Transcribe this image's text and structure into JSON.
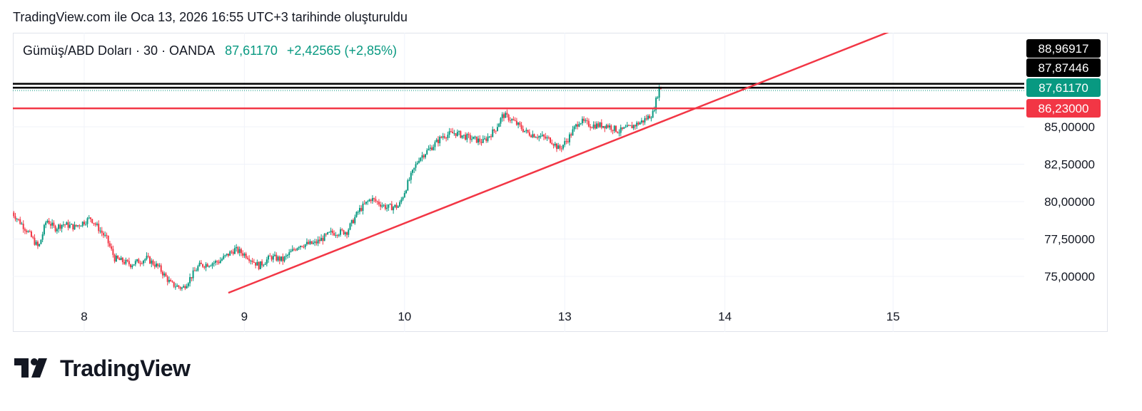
{
  "header": {
    "created_text": "TradingView.com ile Oca 13, 2026 16:55 UTC+3 tarihinde oluşturuldu"
  },
  "legend": {
    "symbol": "Gümüş/ABD Doları · 30 · OANDA",
    "price": "87,61170",
    "change": "+2,42565 (+2,85%)"
  },
  "brand": {
    "name": "TradingView",
    "logo_icon": "tradingview-logo-icon"
  },
  "colors": {
    "up": "#089981",
    "down": "#f23645",
    "level": "#000000",
    "trend": "#f23645"
  },
  "chart_data": {
    "type": "candlestick",
    "symbol": "Gümüş/ABD Doları",
    "interval": "30",
    "ylim": [
      73.3,
      90.5
    ],
    "y_ticks": [
      "75,00000",
      "77,50000",
      "80,00000",
      "82,50000",
      "85,00000"
    ],
    "y_tick_values": [
      75,
      77.5,
      80,
      82.5,
      85
    ],
    "x_ticks": [
      "8",
      "9",
      "10",
      "13",
      "14",
      "15"
    ],
    "x_tick_positions": [
      0.5,
      2.5,
      4.5,
      6.5,
      8.5,
      10.6
    ],
    "price_labels": [
      {
        "text": "88,96917",
        "value": 88.96917,
        "kind": "black"
      },
      {
        "text": "87,87446",
        "value": 87.87446,
        "kind": "black"
      },
      {
        "text": "87,61170",
        "value": 87.6117,
        "kind": "green"
      },
      {
        "text": "86,23000",
        "value": 86.23,
        "kind": "red"
      }
    ],
    "horizontal_lines": [
      {
        "value": 87.87446,
        "color": "#000000"
      },
      {
        "value": 87.6117,
        "color": "#000000"
      },
      {
        "value": 86.23,
        "color": "#f23645"
      }
    ],
    "trendline": {
      "from": {
        "day": 2.3,
        "price": 73.9
      },
      "to": {
        "day": 11.0,
        "price": 92.3
      },
      "color": "#f23645"
    },
    "anchors": [
      [
        -0.4,
        79.4
      ],
      [
        -0.2,
        78.1
      ],
      [
        -0.05,
        76.9
      ],
      [
        0.05,
        78.8
      ],
      [
        0.15,
        78.2
      ],
      [
        0.25,
        78.5
      ],
      [
        0.4,
        78.3
      ],
      [
        0.6,
        78.9
      ],
      [
        0.8,
        77.5
      ],
      [
        0.9,
        76.2
      ],
      [
        1.1,
        75.8
      ],
      [
        1.3,
        76.2
      ],
      [
        1.45,
        75.6
      ],
      [
        1.6,
        74.5
      ],
      [
        1.75,
        74.2
      ],
      [
        1.95,
        75.7
      ],
      [
        2.2,
        76.0
      ],
      [
        2.4,
        76.8
      ],
      [
        2.55,
        76.4
      ],
      [
        2.7,
        75.7
      ],
      [
        2.85,
        76.3
      ],
      [
        3.0,
        76.1
      ],
      [
        3.2,
        77.1
      ],
      [
        3.4,
        77.2
      ],
      [
        3.6,
        77.9
      ],
      [
        3.8,
        78.0
      ],
      [
        3.95,
        79.4
      ],
      [
        4.1,
        80.2
      ],
      [
        4.3,
        79.6
      ],
      [
        4.45,
        79.7
      ],
      [
        4.55,
        81.1
      ],
      [
        4.7,
        82.9
      ],
      [
        4.85,
        83.6
      ],
      [
        5.0,
        84.4
      ],
      [
        5.15,
        84.6
      ],
      [
        5.3,
        84.3
      ],
      [
        5.5,
        84.0
      ],
      [
        5.65,
        84.8
      ],
      [
        5.75,
        85.8
      ],
      [
        5.85,
        85.5
      ],
      [
        6.05,
        84.6
      ],
      [
        6.25,
        84.3
      ],
      [
        6.35,
        84.1
      ],
      [
        6.45,
        83.5
      ],
      [
        6.55,
        84.1
      ],
      [
        6.7,
        85.4
      ],
      [
        6.85,
        85.1
      ],
      [
        7.05,
        85.1
      ],
      [
        7.2,
        84.7
      ],
      [
        7.35,
        85.0
      ],
      [
        7.5,
        85.4
      ],
      [
        7.62,
        85.9
      ],
      [
        7.7,
        87.6
      ]
    ],
    "candle_step_days": 0.02,
    "total_days": 13.7,
    "x_start_day": -0.45
  }
}
